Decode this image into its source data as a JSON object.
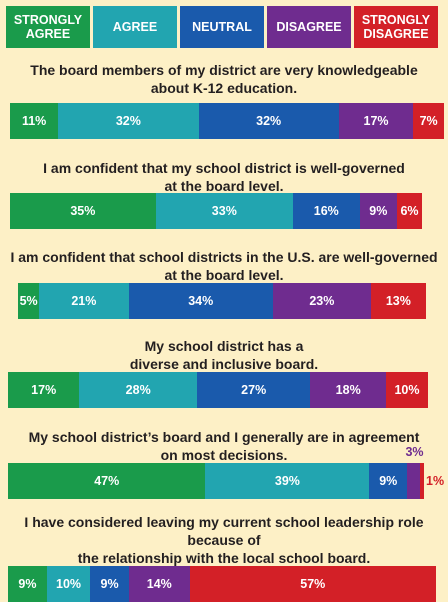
{
  "legend": [
    {
      "label": "STRONGLY\nAGREE",
      "color": "#1a9b4b"
    },
    {
      "label": "AGREE",
      "color": "#22a5b0"
    },
    {
      "label": "NEUTRAL",
      "color": "#1a5aac"
    },
    {
      "label": "DISAGREE",
      "color": "#6f2c8f"
    },
    {
      "label": "STRONGLY\nDISAGREE",
      "color": "#d32027"
    }
  ],
  "chart_data": {
    "type": "bar",
    "orientation": "horizontal-stacked",
    "series_labels": [
      "STRONGLY AGREE",
      "AGREE",
      "NEUTRAL",
      "DISAGREE",
      "STRONGLY DISAGREE"
    ],
    "categories": [
      "The board members of my district are very knowledgeable\nabout K-12 education.",
      "I am confident that my school district is well-governed\nat the board level.",
      "I am confident that school districts in the U.S. are well-governed\nat the board level.",
      "My school district has a\ndiverse and inclusive board.",
      "My school district’s board and I generally are in agreement\non most decisions.",
      "I have considered leaving my current school leadership role because of\nthe relationship with the local school board."
    ],
    "values": [
      [
        11,
        32,
        32,
        17,
        7
      ],
      [
        35,
        33,
        16,
        9,
        6
      ],
      [
        5,
        21,
        34,
        23,
        13
      ],
      [
        17,
        28,
        27,
        18,
        10
      ],
      [
        47,
        39,
        9,
        3,
        1
      ],
      [
        9,
        10,
        9,
        14,
        57
      ]
    ],
    "value_labels": [
      [
        "11%",
        "32%",
        "32%",
        "17%",
        "7%"
      ],
      [
        "35%",
        "33%",
        "16%",
        "9%",
        "6%"
      ],
      [
        "5%",
        "21%",
        "34%",
        "23%",
        "13%"
      ],
      [
        "17%",
        "28%",
        "27%",
        "18%",
        "10%"
      ],
      [
        "47%",
        "39%",
        "9%",
        "3%",
        "1%"
      ],
      [
        "9%",
        "10%",
        "9%",
        "14%",
        "57%"
      ]
    ]
  }
}
